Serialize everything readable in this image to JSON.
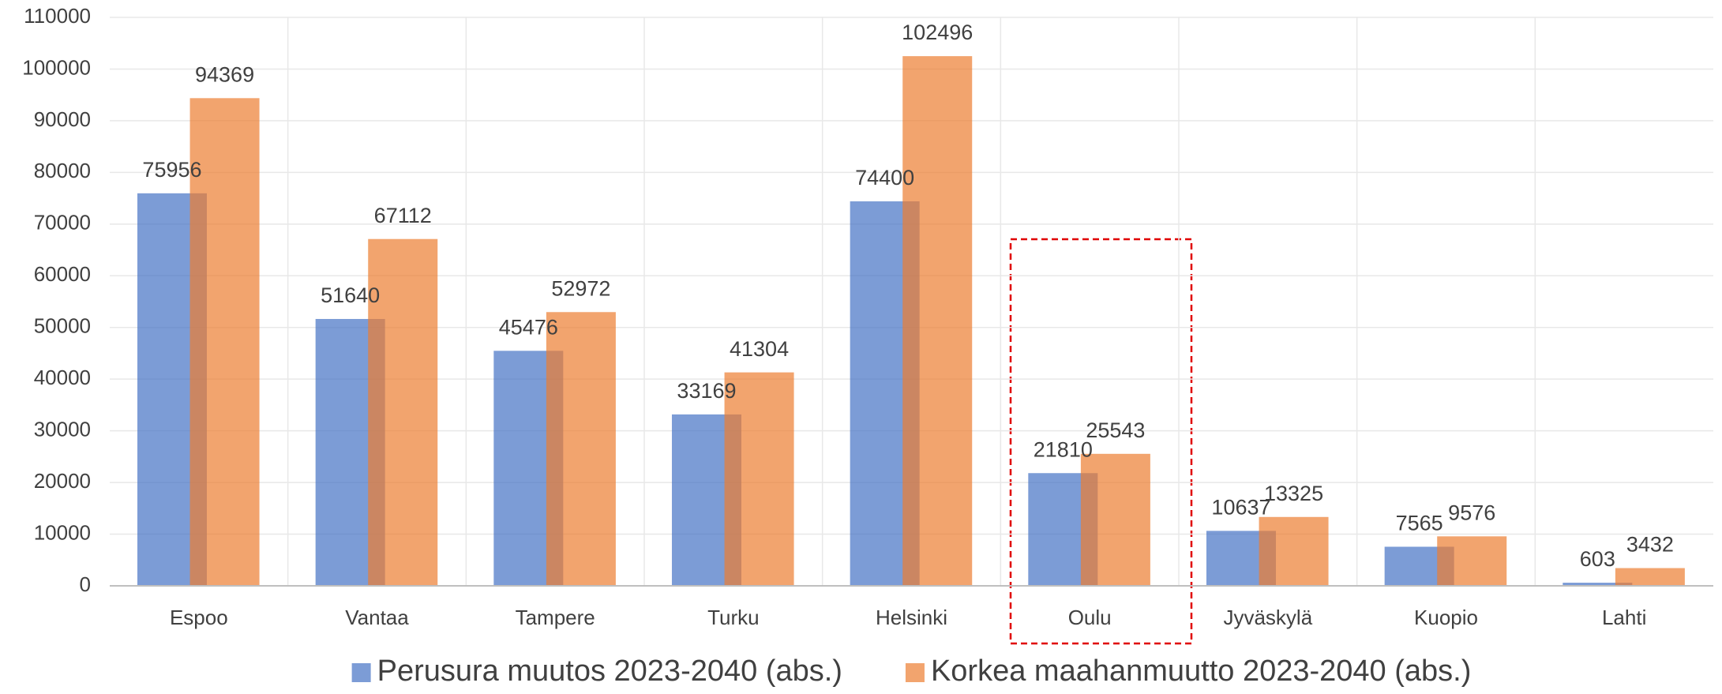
{
  "chart_data": {
    "type": "bar",
    "categories": [
      "Espoo",
      "Vantaa",
      "Tampere",
      "Turku",
      "Helsinki",
      "Oulu",
      "Jyväskylä",
      "Kuopio",
      "Lahti"
    ],
    "series": [
      {
        "name": "Perusura muutos 2023-2040 (abs.)",
        "color": "#4472c4",
        "values": [
          75956,
          51640,
          45476,
          33169,
          74400,
          21810,
          10637,
          7565,
          603
        ]
      },
      {
        "name": "Korkea maahanmuutto 2023-2040 (abs.)",
        "color": "#ed7d31",
        "values": [
          94369,
          67112,
          52972,
          41304,
          102496,
          25543,
          13325,
          9576,
          3432
        ]
      }
    ],
    "ylim": [
      0,
      110000
    ],
    "yticks": [
      0,
      10000,
      20000,
      30000,
      40000,
      50000,
      60000,
      70000,
      80000,
      90000,
      100000,
      110000
    ],
    "grid": true,
    "legend": "bottom"
  }
}
